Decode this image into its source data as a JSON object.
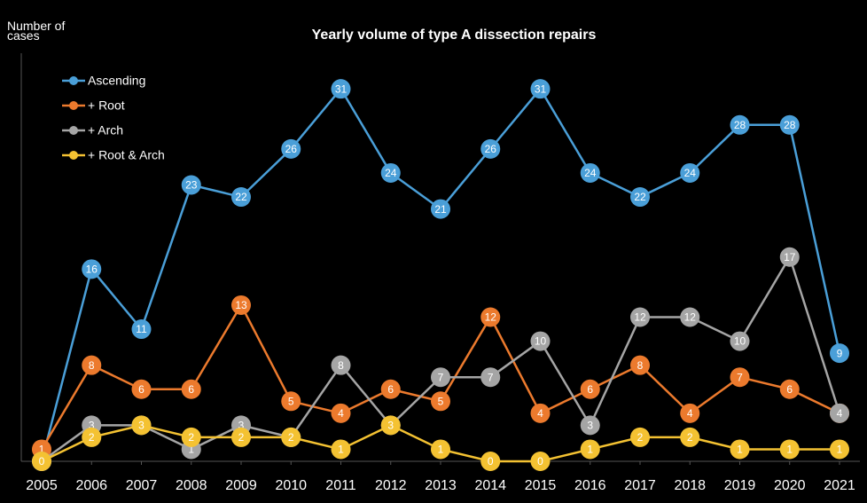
{
  "chart_data": {
    "type": "line",
    "title": "Yearly volume of type A dissection repairs",
    "y_label": "Number of cases",
    "x": [
      2005,
      2006,
      2007,
      2008,
      2009,
      2010,
      2011,
      2012,
      2013,
      2014,
      2015,
      2016,
      2017,
      2018,
      2019,
      2020,
      2021
    ],
    "xlim": [
      2005,
      2021
    ],
    "xticks": [
      2005,
      2006,
      2007,
      2008,
      2009,
      2010,
      2011,
      2012,
      2013,
      2014,
      2015,
      2016,
      2017,
      2018,
      2019,
      2020,
      2021
    ],
    "ylim": [
      0,
      35
    ],
    "legend": "upper left",
    "series": [
      {
        "name": "Ascending",
        "color": "#4a9fd8",
        "values": [
          0,
          16,
          11,
          23,
          22,
          26,
          31,
          24,
          21,
          26,
          31,
          24,
          22,
          24,
          28,
          28,
          9
        ]
      },
      {
        "name": "+ Root",
        "color": "#ec7a2d",
        "values": [
          1,
          8,
          6,
          6,
          13,
          5,
          4,
          6,
          5,
          12,
          4,
          6,
          8,
          4,
          7,
          6,
          4
        ]
      },
      {
        "name": "+ Arch",
        "color": "#a5a5a5",
        "values": [
          0,
          3,
          3,
          1,
          3,
          2,
          8,
          3,
          7,
          7,
          10,
          3,
          12,
          12,
          10,
          17,
          4
        ]
      },
      {
        "name": "+ Root & Arch",
        "color": "#f4c232",
        "values": [
          0,
          2,
          3,
          2,
          2,
          2,
          1,
          3,
          1,
          0,
          0,
          1,
          2,
          2,
          1,
          1,
          1
        ]
      }
    ]
  }
}
